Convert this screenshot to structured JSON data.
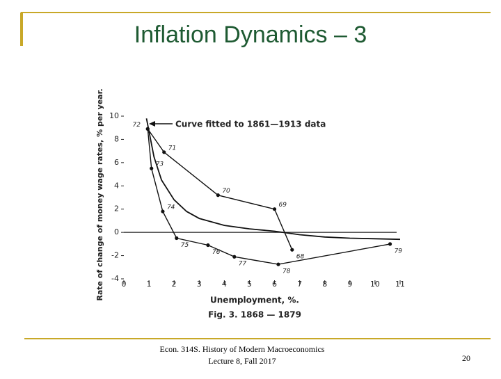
{
  "slide": {
    "title": "Inflation Dynamics – 3",
    "footer_lines": [
      "Econ. 314S. History of Modern Macroeconomics",
      "Lecture 8, Fall 2017"
    ],
    "page_number": "20"
  },
  "chart_data": {
    "type": "line",
    "y_label": "Rate of change of money wage rates, % per year.",
    "x_label": "Unemployment, %.",
    "caption": "Fig. 3. 1868 — 1879",
    "annotation": "Curve fitted to 1861—1913 data",
    "xlim": [
      0,
      11
    ],
    "xticks": [
      0,
      1,
      2,
      3,
      4,
      5,
      6,
      7,
      8,
      9,
      10,
      11
    ],
    "ylim": [
      -4,
      10
    ],
    "yticks": [
      10,
      8,
      6,
      4,
      2,
      0,
      -2,
      -4
    ],
    "color": "#111111",
    "fitted_curve": {
      "x": [
        0.9,
        1.2,
        1.5,
        2,
        2.5,
        3,
        4,
        5,
        6,
        7,
        8,
        9,
        10,
        11
      ],
      "values": [
        9.8,
        6.5,
        4.5,
        2.8,
        1.8,
        1.2,
        0.6,
        0.3,
        0.1,
        -0.2,
        -0.4,
        -0.5,
        -0.55,
        -0.6
      ]
    },
    "series": [
      {
        "x": [
          0.95,
          1.6,
          3.75,
          6.0,
          6.7
        ],
        "values": [
          8.9,
          6.9,
          3.2,
          2.0,
          -1.5
        ],
        "point_labels": [
          "72",
          "71",
          "70",
          "69",
          "68"
        ]
      },
      {
        "x": [
          0.95,
          1.1,
          1.55,
          2.1,
          3.35,
          4.4,
          6.15,
          10.6
        ],
        "values": [
          8.9,
          5.5,
          1.8,
          -0.5,
          -1.1,
          -2.1,
          -2.75,
          -1.0
        ],
        "point_labels": [
          "72",
          "73",
          "74",
          "75",
          "76",
          "77",
          "78",
          "79"
        ]
      }
    ]
  }
}
